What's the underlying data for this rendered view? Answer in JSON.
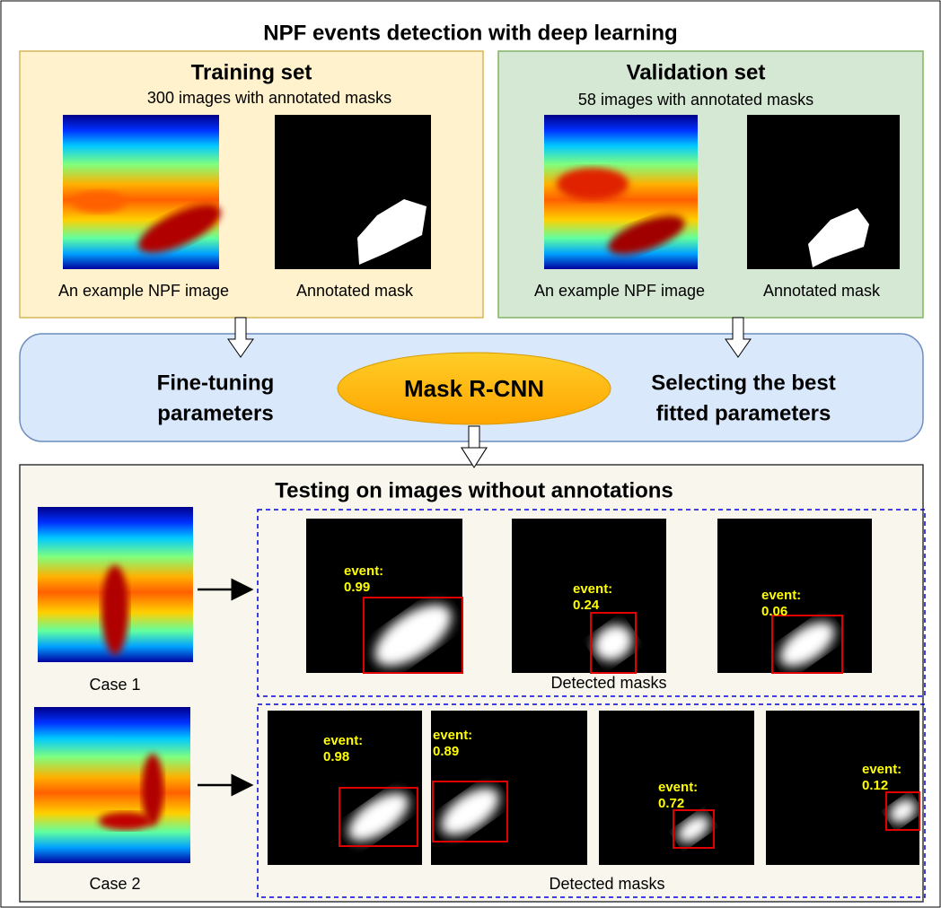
{
  "title": "NPF events detection with deep learning",
  "training": {
    "title": "Training set",
    "subtitle": "300 images with annotated masks",
    "image_caption": "An example NPF image",
    "mask_caption": "Annotated mask"
  },
  "validation": {
    "title": "Validation set",
    "subtitle": "58 images with annotated masks",
    "image_caption": "An example NPF image",
    "mask_caption": "Annotated mask"
  },
  "model": {
    "name": "Mask R-CNN",
    "left": [
      "Fine-tuning",
      "parameters"
    ],
    "right": [
      "Selecting the best",
      "fitted parameters"
    ]
  },
  "testing": {
    "title": "Testing on images without annotations",
    "cases": [
      {
        "label": "Case 1",
        "caption": "Detected masks",
        "detections": [
          {
            "label": "event:",
            "score": 0.99
          },
          {
            "label": "event:",
            "score": 0.24
          },
          {
            "label": "event:",
            "score": 0.06
          }
        ]
      },
      {
        "label": "Case 2",
        "caption": "Detected masks",
        "detections": [
          {
            "label": "event:",
            "score": 0.98
          },
          {
            "label": "event:",
            "score": 0.89
          },
          {
            "label": "event:",
            "score": 0.72
          },
          {
            "label": "event:",
            "score": 0.12
          }
        ]
      }
    ]
  }
}
